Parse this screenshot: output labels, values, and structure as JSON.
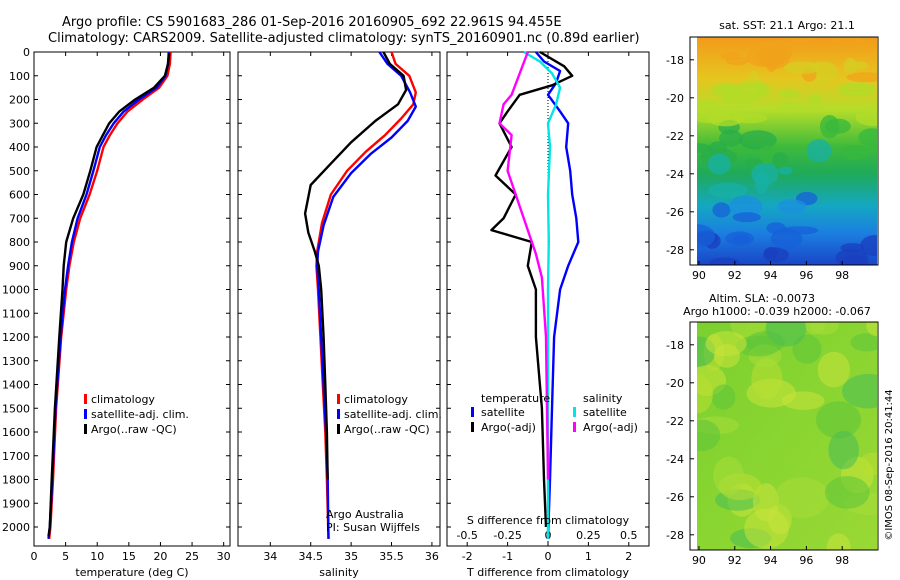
{
  "header": {
    "line1": "Argo profile: CS 5901683_286 01-Sep-2016 20160905_692 22.961S 94.455E",
    "line2": "Climatology: CARS2009. Satellite-adjusted climatology: synTS_20160901.nc (0.89d earlier)"
  },
  "side_text": "©IMOS 08-Sep-2016 20:41:44",
  "credit": {
    "line1": "Argo Australia",
    "line2": "PI: Susan Wijffels"
  },
  "colors": {
    "climatology": "#ff0000",
    "satellite": "#0000ff",
    "argo": "#000000",
    "sat_salinity": "#00e5e5",
    "argo_salinity": "#ff00ff"
  },
  "chart_data": [
    {
      "type": "line",
      "panel": "temperature",
      "xlabel": "temperature (deg C)",
      "xlim": [
        0,
        31
      ],
      "xticks": [
        "0",
        "5",
        "10",
        "15",
        "20",
        "25",
        "30"
      ],
      "ylim": [
        2080,
        0
      ],
      "yticks": [
        "0",
        "100",
        "200",
        "300",
        "400",
        "500",
        "600",
        "700",
        "800",
        "900",
        "1000",
        "1100",
        "1200",
        "1300",
        "1400",
        "1500",
        "1600",
        "1700",
        "1800",
        "1900",
        "2000"
      ],
      "legend": [
        "climatology",
        "satellite-adj. clim.",
        "Argo(..raw -QC)"
      ],
      "series": [
        {
          "name": "climatology",
          "color": "#ff0000",
          "x": [
            21.6,
            21.5,
            21.1,
            19.8,
            17.2,
            14.8,
            13.2,
            12.0,
            11.0,
            10.0,
            8.8,
            7.3,
            6.3,
            5.6,
            5.1,
            4.3,
            3.5,
            3.0,
            2.6,
            2.4
          ],
          "y": [
            0,
            50,
            100,
            150,
            200,
            250,
            300,
            350,
            400,
            500,
            600,
            700,
            800,
            900,
            1000,
            1200,
            1500,
            1800,
            2000,
            2050
          ]
        },
        {
          "name": "satellite-adj. clim.",
          "color": "#0000ff",
          "x": [
            21.3,
            21.2,
            20.8,
            19.4,
            16.6,
            14.2,
            12.6,
            11.4,
            10.4,
            9.4,
            8.3,
            6.9,
            6.0,
            5.4,
            4.9,
            4.2,
            3.4,
            2.9,
            2.5,
            2.3
          ],
          "y": [
            0,
            50,
            100,
            150,
            200,
            250,
            300,
            350,
            400,
            500,
            600,
            700,
            800,
            900,
            1000,
            1200,
            1500,
            1800,
            2000,
            2050
          ]
        },
        {
          "name": "Argo(..raw -QC)",
          "color": "#000000",
          "x": [
            21.4,
            21.2,
            20.7,
            19.0,
            16.0,
            13.5,
            11.9,
            10.9,
            9.9,
            8.9,
            7.8,
            6.2,
            5.1,
            4.7,
            4.5,
            4.0,
            3.3,
            2.8,
            2.5,
            2.3
          ],
          "y": [
            5,
            50,
            100,
            150,
            200,
            250,
            300,
            350,
            400,
            500,
            600,
            700,
            800,
            900,
            1000,
            1200,
            1500,
            1800,
            2000,
            2040
          ]
        }
      ]
    },
    {
      "type": "line",
      "panel": "salinity",
      "xlabel": "salinity",
      "xlim": [
        33.6,
        36.1
      ],
      "xticks": [
        "34",
        "34.5",
        "35",
        "35.5",
        "36"
      ],
      "ylim": [
        2080,
        0
      ],
      "legend": [
        "climatology",
        "satellite-adj. clim.",
        "Argo(..raw -QC)"
      ],
      "series": [
        {
          "name": "climatology",
          "color": "#ff0000",
          "x": [
            35.5,
            35.55,
            35.72,
            35.8,
            35.77,
            35.62,
            35.42,
            35.18,
            34.95,
            34.75,
            34.64,
            34.58,
            34.57,
            34.59,
            34.62,
            34.65,
            34.68,
            34.7,
            34.72
          ],
          "y": [
            0,
            50,
            100,
            170,
            220,
            280,
            350,
            420,
            500,
            600,
            720,
            840,
            900,
            1000,
            1200,
            1400,
            1600,
            1800,
            2050
          ]
        },
        {
          "name": "satellite-adj. clim.",
          "color": "#0000ff",
          "x": [
            35.35,
            35.45,
            35.62,
            35.73,
            35.8,
            35.7,
            35.5,
            35.24,
            35.0,
            34.78,
            34.66,
            34.59,
            34.58,
            34.6,
            34.63,
            34.66,
            34.69,
            34.71,
            34.72
          ],
          "y": [
            0,
            50,
            100,
            170,
            230,
            290,
            360,
            430,
            510,
            610,
            730,
            840,
            900,
            1000,
            1200,
            1400,
            1600,
            1800,
            2050
          ]
        },
        {
          "name": "Argo(..raw -QC)",
          "color": "#000000",
          "x": [
            35.4,
            35.48,
            35.65,
            35.68,
            35.58,
            35.3,
            35.0,
            34.75,
            34.5,
            34.43,
            34.47,
            34.55,
            34.6,
            34.63,
            34.66,
            34.68,
            34.7,
            34.71
          ],
          "y": [
            0,
            50,
            100,
            160,
            220,
            290,
            380,
            470,
            560,
            680,
            760,
            840,
            900,
            1000,
            1200,
            1400,
            1600,
            1800
          ]
        }
      ]
    },
    {
      "type": "line",
      "panel": "differences",
      "xlabel": "T difference from climatology",
      "xlabel_top": "S difference from climatology",
      "xlim": [
        -2.5,
        2.5
      ],
      "xticks": [
        "-2",
        "-1",
        "0",
        "1",
        "2"
      ],
      "xticks_top": [
        "-0.5",
        "-0.25",
        "0",
        "0.25",
        "0.5"
      ],
      "ylim": [
        2080,
        0
      ],
      "legend_temperature_title": "temperature",
      "legend_salinity_title": "salinity",
      "legend_temperature": [
        "satellite",
        "Argo(-adj)"
      ],
      "legend_salinity": [
        "satellite",
        "Argo(-adj)"
      ],
      "series": [
        {
          "name": "temperature satellite",
          "color": "#0000ff",
          "x": [
            -0.3,
            -0.1,
            0.3,
            0.2,
            0.0,
            0.3,
            0.5,
            0.45,
            0.55,
            0.6,
            0.7,
            0.75,
            0.5,
            0.3,
            0.15,
            0.1,
            0.05,
            0.0
          ],
          "y": [
            0,
            40,
            80,
            130,
            180,
            250,
            300,
            400,
            500,
            600,
            700,
            800,
            900,
            1000,
            1200,
            1500,
            1800,
            2050
          ]
        },
        {
          "name": "temperature Argo(-adj)",
          "color": "#000000",
          "x": [
            -0.2,
            0.4,
            0.6,
            0.1,
            -0.7,
            -1.0,
            -1.2,
            -0.9,
            -1.3,
            -0.8,
            -1.1,
            -1.4,
            -0.4,
            -0.5,
            -0.3,
            -0.3,
            -0.15,
            -0.1,
            -0.05
          ],
          "y": [
            0,
            60,
            100,
            140,
            180,
            250,
            300,
            400,
            520,
            600,
            700,
            750,
            800,
            900,
            1000,
            1200,
            1500,
            1800,
            2000
          ]
        },
        {
          "name": "salinity satellite",
          "color": "#00e5e5",
          "x": [
            -0.6,
            -0.2,
            0.1,
            0.3,
            0.2,
            0.0,
            0.05,
            0.0,
            0.02,
            0.0,
            0.0,
            0.0
          ],
          "y": [
            0,
            40,
            90,
            150,
            220,
            300,
            400,
            600,
            800,
            1000,
            1500,
            2050
          ]
        },
        {
          "name": "salinity Argo(-adj)",
          "color": "#ff00ff",
          "x": [
            -0.5,
            -0.9,
            -1.1,
            -1.2,
            -0.9,
            -1.0,
            -0.7,
            -0.5,
            -0.3,
            -0.15,
            -0.05,
            0.0
          ],
          "y": [
            0,
            180,
            220,
            300,
            350,
            500,
            650,
            750,
            850,
            950,
            1200,
            1800
          ]
        }
      ]
    },
    {
      "type": "heatmap",
      "panel": "sst_map",
      "title": "sat. SST: 21.1 Argo: 21.1",
      "xticks": [
        "90",
        "92",
        "94",
        "96",
        "98"
      ],
      "yticks": [
        "-18",
        "-20",
        "-22",
        "-24",
        "-26",
        "-28"
      ],
      "xlim": [
        89.5,
        100
      ],
      "ylim": [
        -28.8,
        -16.8
      ]
    },
    {
      "type": "heatmap",
      "panel": "sla_map",
      "title": "Altim. SLA: -0.0073",
      "subtitle": "Argo h1000: -0.039 h2000: -0.067",
      "xticks": [
        "90",
        "92",
        "94",
        "96",
        "98"
      ],
      "yticks": [
        "-18",
        "-20",
        "-22",
        "-24",
        "-26",
        "-28"
      ],
      "xlim": [
        89.5,
        100
      ],
      "ylim": [
        -28.8,
        -16.8
      ]
    }
  ]
}
